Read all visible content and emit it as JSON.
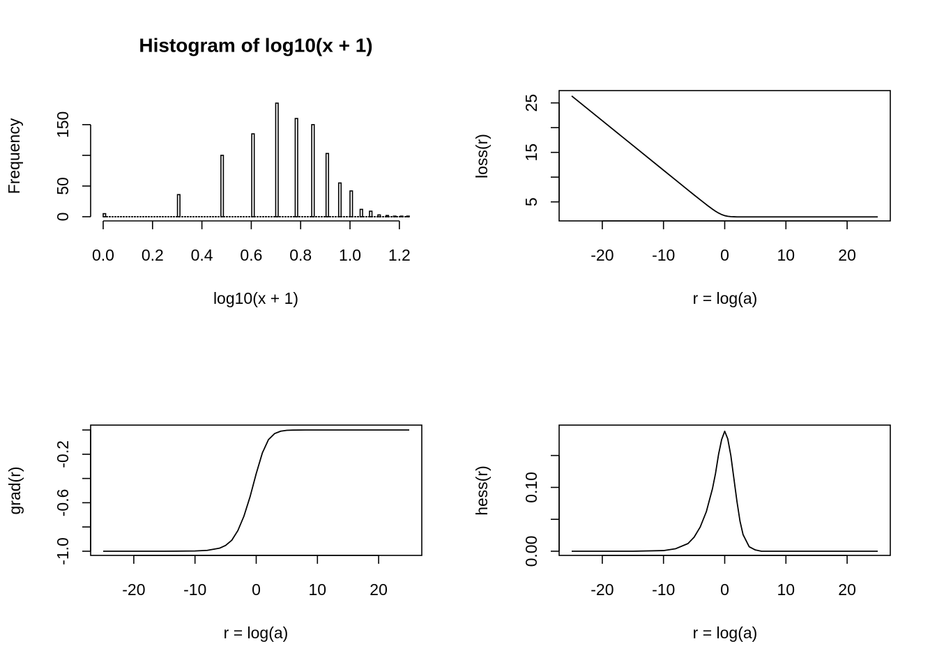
{
  "chart_data": [
    {
      "type": "bar",
      "title": "Histogram of log10(x + 1)",
      "xlabel": "log10(x + 1)",
      "ylabel": "Frequency",
      "xlim": [
        0.0,
        1.24
      ],
      "ylim": [
        0,
        185
      ],
      "xticks": [
        "0.0",
        "0.2",
        "0.4",
        "0.6",
        "0.8",
        "1.0",
        "1.2"
      ],
      "xtick_values": [
        0.0,
        0.2,
        0.4,
        0.6,
        0.8,
        1.0,
        1.2
      ],
      "yticks": [
        "0",
        "50",
        "100",
        "150"
      ],
      "ytick_values": [
        0,
        50,
        100,
        150
      ],
      "ytick_labels_shown": [
        "0",
        "50",
        "150"
      ],
      "bin_width": 0.01,
      "bins": [
        {
          "x": 0.0,
          "count": 5
        },
        {
          "x": 0.301,
          "count": 36
        },
        {
          "x": 0.477,
          "count": 100
        },
        {
          "x": 0.602,
          "count": 135
        },
        {
          "x": 0.699,
          "count": 185
        },
        {
          "x": 0.778,
          "count": 160
        },
        {
          "x": 0.845,
          "count": 150
        },
        {
          "x": 0.903,
          "count": 103
        },
        {
          "x": 0.954,
          "count": 55
        },
        {
          "x": 1.0,
          "count": 42
        },
        {
          "x": 1.041,
          "count": 12
        },
        {
          "x": 1.079,
          "count": 9
        },
        {
          "x": 1.113,
          "count": 3
        },
        {
          "x": 1.146,
          "count": 2
        },
        {
          "x": 1.176,
          "count": 1
        },
        {
          "x": 1.204,
          "count": 1
        },
        {
          "x": 1.23,
          "count": 1
        }
      ],
      "grid": false
    },
    {
      "type": "line",
      "title": "",
      "xlabel": "r = log(a)",
      "ylabel": "loss(r)",
      "xlim": [
        -25,
        25
      ],
      "ylim": [
        2.0,
        26.5
      ],
      "xticks": [
        "-20",
        "-10",
        "0",
        "10",
        "20"
      ],
      "xtick_values": [
        -20,
        -10,
        0,
        10,
        20
      ],
      "yticks": [
        "5",
        "10",
        "15",
        "20",
        "25"
      ],
      "ytick_values": [
        5,
        10,
        15,
        20,
        25
      ],
      "ytick_labels_shown": [
        "5",
        "15",
        "25"
      ],
      "x": [
        -25,
        -20,
        -15,
        -10,
        -8,
        -6,
        -5,
        -4,
        -3,
        -2,
        -1.5,
        -1,
        -0.5,
        0,
        0.5,
        1,
        1.5,
        2,
        3,
        4,
        5,
        10,
        15,
        20,
        25
      ],
      "y": [
        26.4,
        21.4,
        16.4,
        11.4,
        9.4,
        7.4,
        6.4,
        5.42,
        4.45,
        3.53,
        3.11,
        2.74,
        2.44,
        2.22,
        2.09,
        2.02,
        1.99,
        1.97,
        1.96,
        1.96,
        1.96,
        1.96,
        1.96,
        1.96,
        1.96
      ],
      "grid": false
    },
    {
      "type": "line",
      "title": "",
      "xlabel": "r = log(a)",
      "ylabel": "grad(r)",
      "xlim": [
        -25,
        25
      ],
      "ylim": [
        -1.0,
        0.0
      ],
      "xticks": [
        "-20",
        "-10",
        "0",
        "10",
        "20"
      ],
      "xtick_values": [
        -20,
        -10,
        0,
        10,
        20
      ],
      "yticks": [
        "-1.0",
        "-0.8",
        "-0.6",
        "-0.4",
        "-0.2",
        "0.0"
      ],
      "ytick_values": [
        -1.0,
        -0.8,
        -0.6,
        -0.4,
        -0.2,
        0.0
      ],
      "ytick_labels_shown": [
        "-1.0",
        "-0.6",
        "-0.2"
      ],
      "x": [
        -25,
        -15,
        -10,
        -8,
        -6,
        -5,
        -4,
        -3,
        -2,
        -1,
        0,
        1,
        2,
        3,
        4,
        5,
        6,
        8,
        10,
        15,
        25
      ],
      "y": [
        -1.0,
        -1.0,
        -0.998,
        -0.993,
        -0.975,
        -0.952,
        -0.91,
        -0.83,
        -0.71,
        -0.55,
        -0.36,
        -0.19,
        -0.08,
        -0.03,
        -0.01,
        -0.003,
        -0.001,
        0.0,
        0.0,
        0.0,
        0.0
      ],
      "grid": false
    },
    {
      "type": "line",
      "title": "",
      "xlabel": "r = log(a)",
      "ylabel": "hess(r)",
      "xlim": [
        -25,
        25
      ],
      "ylim": [
        0.0,
        0.19
      ],
      "xticks": [
        "-20",
        "-10",
        "0",
        "10",
        "20"
      ],
      "xtick_values": [
        -20,
        -10,
        0,
        10,
        20
      ],
      "yticks": [
        "0.00",
        "0.05",
        "0.10",
        "0.15"
      ],
      "ytick_values": [
        0.0,
        0.05,
        0.1,
        0.15
      ],
      "ytick_labels_shown": [
        "0.00",
        "0.10"
      ],
      "x": [
        -25,
        -15,
        -10,
        -8,
        -6,
        -5,
        -4,
        -3,
        -2,
        -1.5,
        -1,
        -0.5,
        0,
        0.5,
        1,
        1.5,
        2,
        2.5,
        3,
        4,
        5,
        6,
        8,
        25
      ],
      "y": [
        0.0,
        0.0,
        0.001,
        0.004,
        0.012,
        0.022,
        0.038,
        0.062,
        0.098,
        0.122,
        0.152,
        0.175,
        0.188,
        0.176,
        0.15,
        0.114,
        0.078,
        0.047,
        0.026,
        0.007,
        0.002,
        0.0,
        0.0,
        0.0
      ],
      "grid": false
    }
  ]
}
